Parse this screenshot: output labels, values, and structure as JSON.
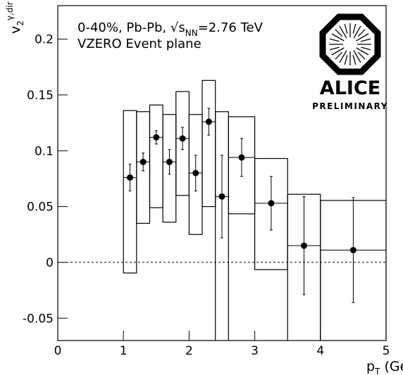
{
  "chart_data": {
    "type": "errorbox",
    "annotation_lines": [
      {
        "a": "0-40%, Pb-Pb, √s",
        "sub": "NN",
        "b": "=2.76 TeV"
      },
      {
        "a": "VZERO Event plane"
      }
    ],
    "logo": {
      "name": "ALICE",
      "status": "PRELIMINARY"
    },
    "x_label": {
      "main": "p",
      "sub": "T",
      "rest": " (GeV/c)"
    },
    "y_label": {
      "main": "v",
      "sub": "2",
      "sup": "γ,dir"
    },
    "xlim": [
      0,
      5
    ],
    "ylim": [
      -0.07,
      0.23
    ],
    "xticks": [
      0,
      1,
      2,
      3,
      4,
      5
    ],
    "yticks": [
      -0.05,
      0,
      0.05,
      0.1,
      0.15,
      0.2
    ],
    "hline": 0,
    "series": [
      {
        "color": "#000000",
        "x": [
          1.1,
          1.3,
          1.5,
          1.7,
          1.9,
          2.1,
          2.3,
          2.5,
          2.8,
          3.25,
          3.75,
          4.5
        ],
        "values": [
          0.076,
          0.09,
          0.112,
          0.09,
          0.111,
          0.08,
          0.126,
          0.059,
          0.094,
          0.053,
          0.015,
          0.011
        ],
        "errors": [
          0.012,
          0.008,
          0.006,
          0.011,
          0.01,
          0.016,
          0.012,
          0.037,
          0.017,
          0.024,
          0.044,
          0.047
        ],
        "box_xlo": [
          1.0,
          1.2,
          1.4,
          1.6,
          1.8,
          2.0,
          2.2,
          2.4,
          2.6,
          3.0,
          3.5,
          4.0
        ],
        "box_xhi": [
          1.2,
          1.4,
          1.6,
          1.8,
          2.0,
          2.2,
          2.4,
          2.6,
          3.0,
          3.5,
          4.0,
          5.0
        ],
        "box_ylo": [
          -0.0095,
          0.035,
          0.049,
          0.036,
          0.06,
          0.025,
          0.05,
          -0.08,
          0.0435,
          -0.0065,
          -0.08,
          -0.08
        ],
        "box_yhi": [
          0.136,
          0.135,
          0.141,
          0.1325,
          0.153,
          0.1325,
          0.163,
          0.135,
          0.1305,
          0.093,
          0.061,
          0.0555
        ]
      }
    ]
  }
}
